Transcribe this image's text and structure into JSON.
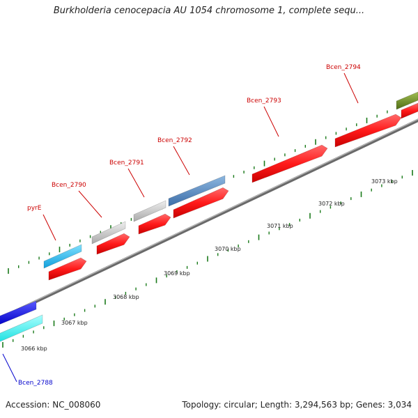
{
  "title": "Burkholderia cenocepacia AU 1054 chromosome 1, complete sequ...",
  "accession": "Accession: NC_008060",
  "summary": "Topology: circular; Length: 3,294,563 bp; Genes: 3,034",
  "colors": {
    "backbone": "#7f7f7f",
    "tick": "#1a7a1a",
    "label_red": "#cc0000",
    "label_blue": "#0000cc",
    "cds_red": "#ff2020",
    "gene_cyan": "#33c3f0",
    "gene_gray": "#c9c9c9",
    "gene_steel": "#5b8fc7",
    "gene_olive": "#6e8e22",
    "gene_blue": "#1a1aee",
    "gene_aqua": "#33f7f7"
  },
  "kbp_labels": [
    {
      "text": "3066 kbp",
      "kbp": 3066
    },
    {
      "text": "3067 kbp",
      "kbp": 3067
    },
    {
      "text": "3068 kbp",
      "kbp": 3068
    },
    {
      "text": "3069 kbp",
      "kbp": 3069
    },
    {
      "text": "3070 kbp",
      "kbp": 3070
    },
    {
      "text": "3071 kbp",
      "kbp": 3071
    },
    {
      "text": "3072 kbp",
      "kbp": 3072
    },
    {
      "text": "3073 kbp",
      "kbp": 3073
    }
  ],
  "gene_labels": [
    {
      "text": "pyrE",
      "color": "red"
    },
    {
      "text": "Bcen_2790",
      "color": "red"
    },
    {
      "text": "Bcen_2791",
      "color": "red"
    },
    {
      "text": "Bcen_2792",
      "color": "red"
    },
    {
      "text": "Bcen_2793",
      "color": "red"
    },
    {
      "text": "Bcen_2794",
      "color": "red"
    },
    {
      "text": "Bcen_2788",
      "color": "blue"
    }
  ]
}
